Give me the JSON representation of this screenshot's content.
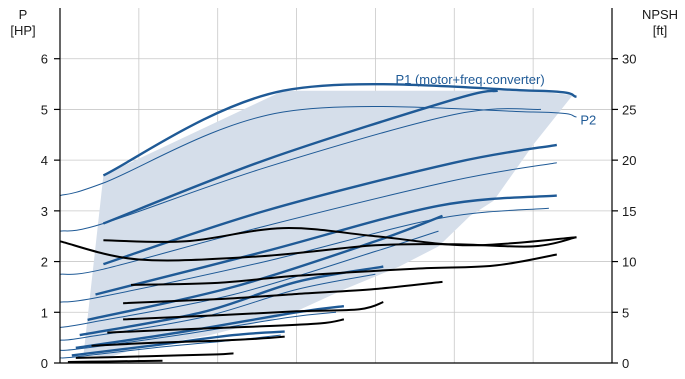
{
  "chart_data": {
    "type": "line",
    "title": "",
    "y_left": {
      "label_line1": "P",
      "label_line2": "[HP]",
      "range": [
        0,
        7
      ],
      "ticks": [
        0,
        1,
        2,
        3,
        4,
        5,
        6
      ]
    },
    "y_right": {
      "label_line1": "NPSH",
      "label_line2": "[ft]",
      "range": [
        0,
        35
      ],
      "ticks": [
        0,
        5,
        10,
        15,
        20,
        25,
        30
      ]
    },
    "x": {
      "range": [
        0,
        7.0
      ],
      "grid": [
        0,
        1,
        2,
        3,
        4,
        5,
        6,
        7
      ],
      "ticklabels": false
    },
    "grid": true,
    "colors": {
      "envelope": "#d5deea",
      "power": "#1f5a96",
      "npsh": "#000000",
      "axis": "#000000",
      "grid": "#c8c8c8"
    },
    "annotations": [
      {
        "text": "P1 (motor+freq.converter)",
        "x": 5.2,
        "y": 5.5
      },
      {
        "text": "P2",
        "x": 6.7,
        "y": 4.7
      }
    ],
    "envelope": {
      "upper": [
        [
          0.3,
          0.2
        ],
        [
          0.55,
          3.7
        ],
        [
          2.83,
          5.37
        ],
        [
          6.0,
          5.37
        ],
        [
          6.5,
          5.28
        ]
      ],
      "lower": [
        [
          6.5,
          5.28
        ],
        [
          6.0,
          4.3
        ],
        [
          5.5,
          3.2
        ],
        [
          5.2,
          2.9
        ],
        [
          4.8,
          2.3
        ],
        [
          4.3,
          1.9
        ],
        [
          3.6,
          1.45
        ],
        [
          2.9,
          0.95
        ],
        [
          1.9,
          0.55
        ],
        [
          1.0,
          0.3
        ],
        [
          0.6,
          0.1
        ],
        [
          0.3,
          0.2
        ]
      ]
    },
    "series_p1": [
      {
        "x": [
          0.55,
          2.83,
          6.0,
          6.55
        ],
        "y": [
          3.7,
          5.37,
          5.37,
          5.25
        ]
      },
      {
        "x": [
          0.55,
          2.6,
          5.0,
          5.55
        ],
        "y": [
          2.75,
          4.0,
          5.2,
          5.37
        ]
      },
      {
        "x": [
          0.55,
          2.6,
          5.0,
          6.3
        ],
        "y": [
          1.95,
          3.0,
          3.95,
          4.3
        ]
      },
      {
        "x": [
          0.45,
          2.6,
          4.8,
          6.3
        ],
        "y": [
          1.35,
          2.2,
          3.1,
          3.3
        ]
      },
      {
        "x": [
          0.35,
          2.2,
          4.0,
          4.85
        ],
        "y": [
          0.85,
          1.5,
          2.4,
          2.9
        ]
      },
      {
        "x": [
          0.25,
          1.8,
          3.0,
          4.1
        ],
        "y": [
          0.55,
          1.0,
          1.6,
          1.9
        ]
      },
      {
        "x": [
          0.2,
          1.5,
          3.0,
          3.6
        ],
        "y": [
          0.3,
          0.6,
          1.0,
          1.12
        ]
      },
      {
        "x": [
          0.15,
          1.2,
          2.2,
          2.85
        ],
        "y": [
          0.15,
          0.35,
          0.55,
          0.62
        ]
      }
    ],
    "series_p2": [
      {
        "x": [
          0.0,
          0.55,
          2.83,
          6.0,
          6.55
        ],
        "y": [
          3.3,
          3.55,
          4.95,
          4.95,
          4.85
        ]
      },
      {
        "x": [
          0.0,
          0.55,
          2.6,
          5.0,
          6.1
        ],
        "y": [
          2.6,
          2.75,
          3.85,
          4.9,
          5.0
        ]
      },
      {
        "x": [
          0.0,
          0.55,
          2.6,
          5.0,
          6.3
        ],
        "y": [
          1.75,
          1.85,
          2.7,
          3.6,
          3.95
        ]
      },
      {
        "x": [
          0.0,
          0.5,
          2.6,
          4.8,
          6.2
        ],
        "y": [
          1.2,
          1.3,
          2.0,
          2.85,
          3.05
        ]
      },
      {
        "x": [
          0.0,
          0.4,
          2.2,
          4.0,
          4.8
        ],
        "y": [
          0.7,
          0.8,
          1.35,
          2.2,
          2.6
        ]
      },
      {
        "x": [
          0.0,
          0.3,
          1.8,
          3.0,
          4.0
        ],
        "y": [
          0.45,
          0.5,
          0.9,
          1.45,
          1.75
        ]
      },
      {
        "x": [
          0.0,
          0.25,
          1.5,
          2.9,
          3.5
        ],
        "y": [
          0.25,
          0.28,
          0.55,
          0.9,
          1.0
        ]
      },
      {
        "x": [
          0.0,
          0.2,
          1.2,
          2.2,
          2.8
        ],
        "y": [
          0.1,
          0.12,
          0.3,
          0.45,
          0.55
        ]
      }
    ],
    "series_npsh": [
      {
        "x": [
          0.55,
          1.6,
          2.83,
          4.0,
          5.2,
          6.55
        ],
        "y": [
          12.1,
          12.0,
          13.3,
          12.5,
          11.6,
          12.4
        ]
      },
      {
        "x": [
          0.0,
          1.0,
          2.5,
          4.0,
          5.0,
          6.0,
          6.55
        ],
        "y": [
          12.0,
          10.2,
          10.5,
          11.6,
          11.7,
          11.5,
          12.4
        ]
      },
      {
        "x": [
          0.9,
          2.0,
          3.0,
          4.5,
          5.5,
          6.3
        ],
        "y": [
          7.7,
          7.9,
          8.6,
          9.3,
          9.6,
          10.7
        ]
      },
      {
        "x": [
          0.8,
          2.0,
          3.0,
          4.0,
          4.85
        ],
        "y": [
          5.9,
          6.3,
          6.8,
          7.3,
          8.0
        ]
      },
      {
        "x": [
          0.8,
          2.0,
          3.0,
          3.8,
          4.1
        ],
        "y": [
          4.3,
          4.7,
          5.1,
          5.3,
          6.0
        ]
      },
      {
        "x": [
          0.6,
          1.5,
          2.5,
          3.3,
          3.6
        ],
        "y": [
          3.0,
          3.3,
          3.6,
          3.9,
          4.3
        ]
      },
      {
        "x": [
          0.4,
          1.2,
          2.0,
          2.5,
          2.85
        ],
        "y": [
          1.7,
          2.0,
          2.2,
          2.4,
          2.6
        ]
      },
      {
        "x": [
          0.2,
          0.8,
          1.5,
          2.0,
          2.2
        ],
        "y": [
          0.5,
          0.6,
          0.75,
          0.85,
          0.95
        ]
      },
      {
        "x": [
          0.1,
          0.6,
          1.0,
          1.3
        ],
        "y": [
          0.1,
          0.15,
          0.2,
          0.22
        ]
      }
    ]
  }
}
